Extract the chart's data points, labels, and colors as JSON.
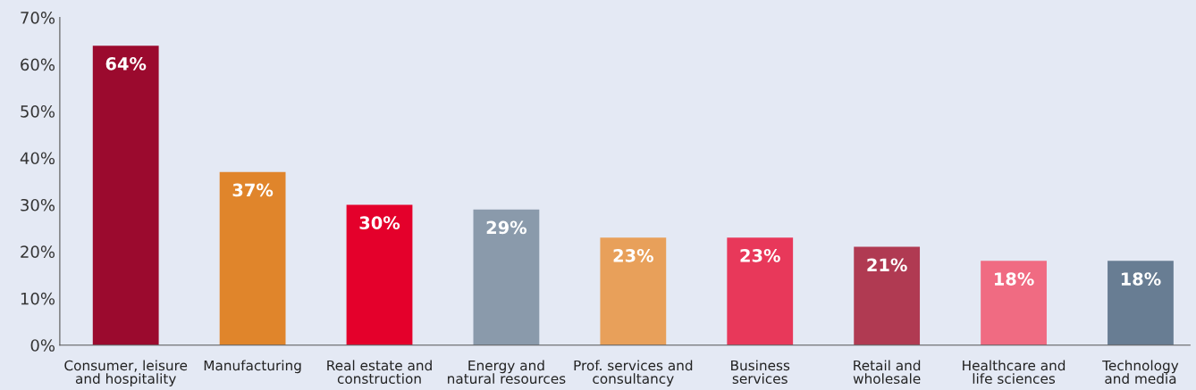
{
  "chart_data": {
    "type": "bar",
    "categories": [
      "Consumer, leisure\nand hospitality",
      "Manufacturing",
      "Real estate and\nconstruction",
      "Energy and\nnatural resources",
      "Prof. services and\nconsultancy",
      "Business\nservices",
      "Retail and\nwholesale",
      "Healthcare and\nlife sciences",
      "Technology\nand media"
    ],
    "values": [
      64,
      37,
      30,
      29,
      23,
      23,
      21,
      18,
      18
    ],
    "value_labels": [
      "64%",
      "37%",
      "30%",
      "29%",
      "23%",
      "23%",
      "21%",
      "18%",
      "18%"
    ],
    "colors": [
      "#9b0a2e",
      "#e0852b",
      "#e4002b",
      "#8a9aab",
      "#e8a05a",
      "#e8385a",
      "#b03a52",
      "#f06b82",
      "#687d93"
    ],
    "ylim": [
      0,
      70
    ],
    "yticks": [
      {
        "value": 0,
        "label": "0%"
      },
      {
        "value": 10,
        "label": "10%"
      },
      {
        "value": 20,
        "label": "20%"
      },
      {
        "value": 30,
        "label": "30%"
      },
      {
        "value": 40,
        "label": "40%"
      },
      {
        "value": 50,
        "label": "50%"
      },
      {
        "value": 60,
        "label": "60%"
      },
      {
        "value": 70,
        "label": "70%"
      }
    ],
    "grid": false,
    "legend": false
  }
}
